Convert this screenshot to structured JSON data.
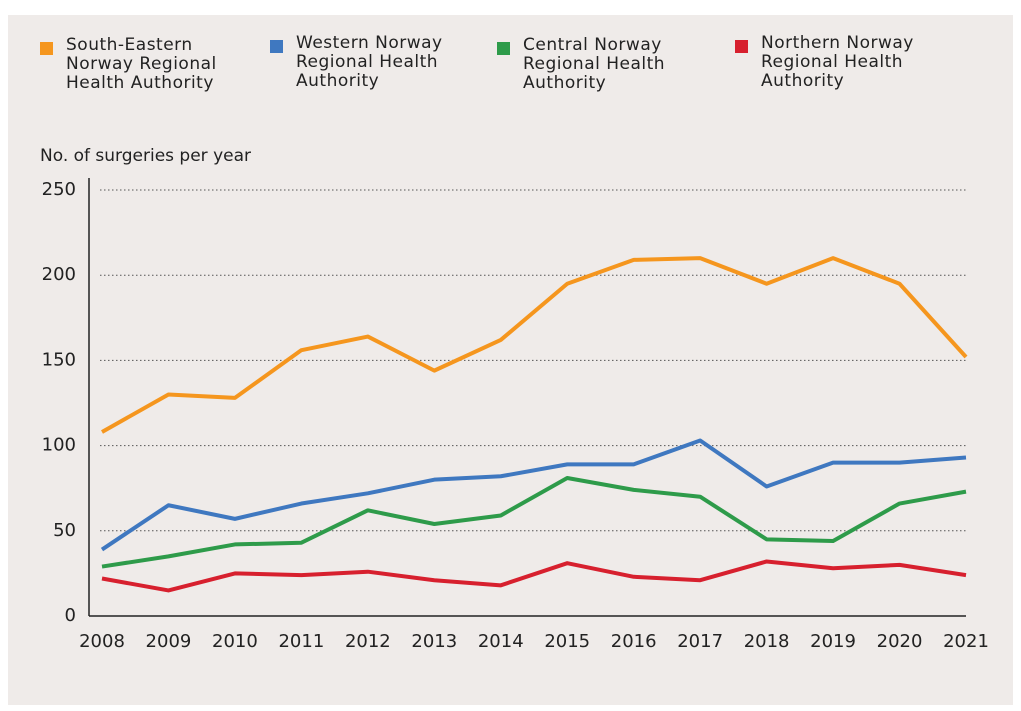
{
  "chart_data": {
    "type": "line",
    "y_label": "No. of surgeries per year",
    "categories": [
      "2008",
      "2009",
      "2010",
      "2011",
      "2012",
      "2013",
      "2014",
      "2015",
      "2016",
      "2017",
      "2018",
      "2019",
      "2020",
      "2021"
    ],
    "series": [
      {
        "name": "South-Eastern Norway Regional Health Authority",
        "color": "#f5961e",
        "values": [
          108,
          130,
          128,
          156,
          164,
          144,
          162,
          195,
          209,
          210,
          195,
          210,
          195,
          152
        ]
      },
      {
        "name": "Western Norway Regional Health Authority",
        "color": "#3f78c0",
        "values": [
          39,
          65,
          57,
          66,
          72,
          80,
          82,
          89,
          89,
          103,
          76,
          90,
          90,
          93
        ]
      },
      {
        "name": "Central Norway Regional Health Authority",
        "color": "#2e9b4a",
        "values": [
          29,
          35,
          42,
          43,
          62,
          54,
          59,
          81,
          74,
          70,
          45,
          44,
          66,
          73
        ]
      },
      {
        "name": "Northern Norway Regional Health Authority",
        "color": "#d7202e",
        "values": [
          22,
          15,
          25,
          24,
          26,
          21,
          18,
          31,
          23,
          21,
          32,
          28,
          30,
          24
        ]
      }
    ],
    "ylim": [
      0,
      250
    ],
    "yticks": [
      0,
      50,
      100,
      150,
      200,
      250
    ],
    "grid": true
  }
}
